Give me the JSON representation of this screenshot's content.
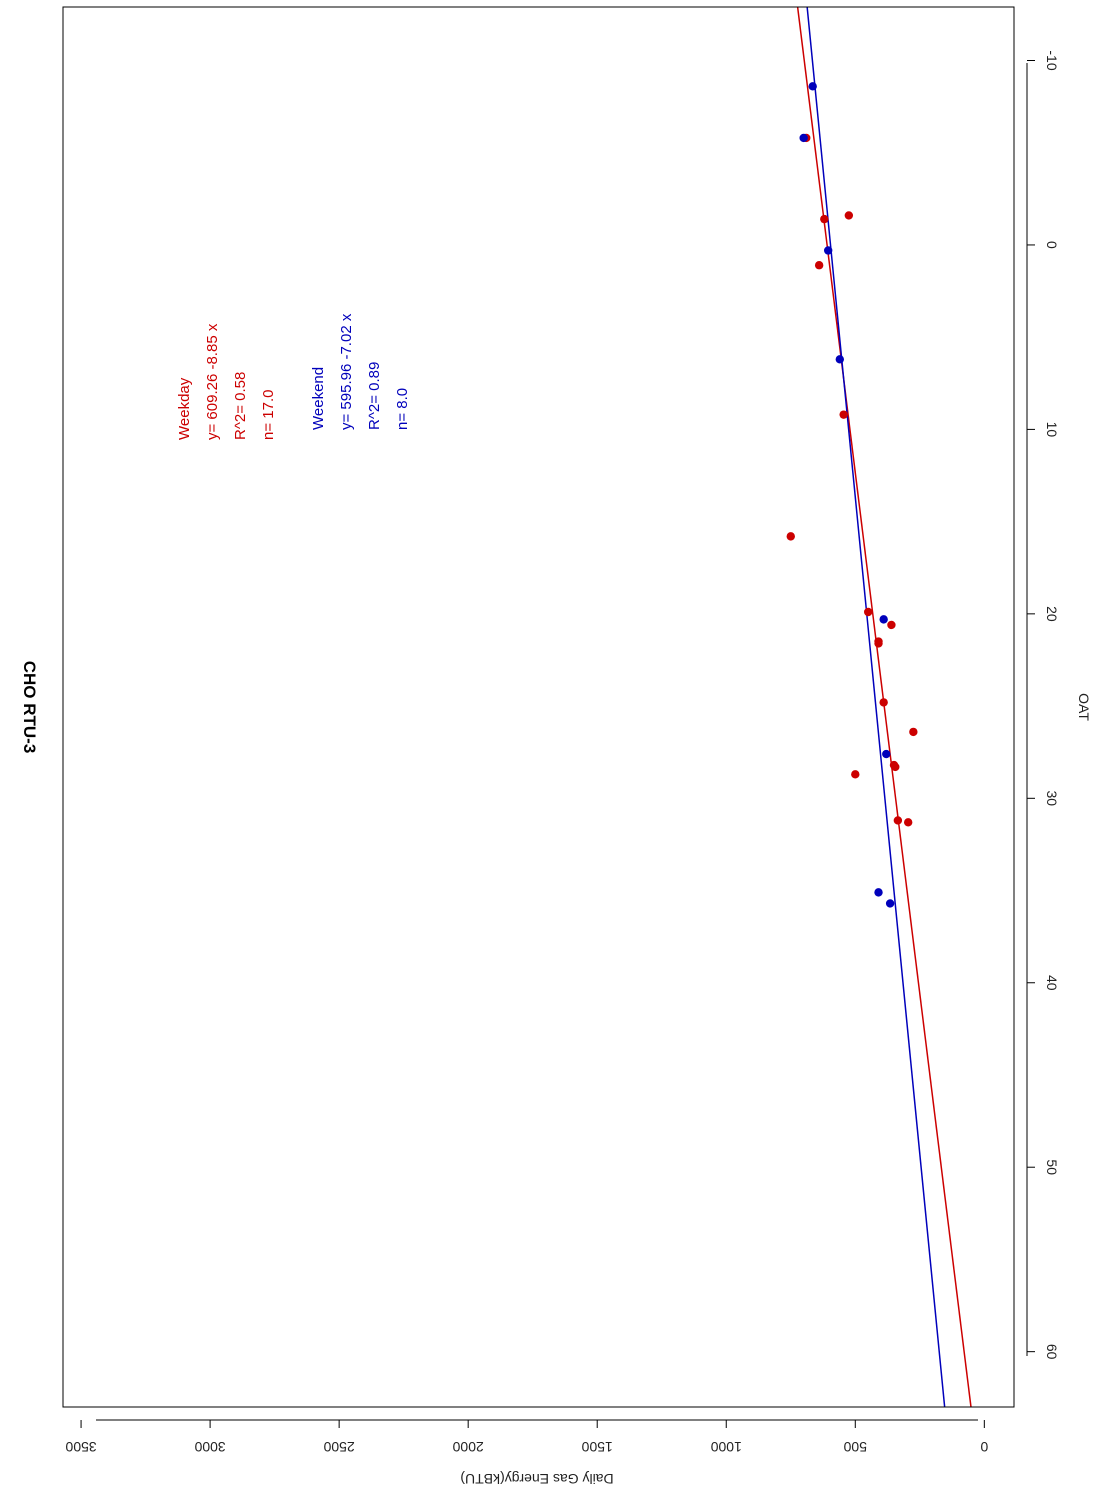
{
  "chart_data": {
    "type": "scatter",
    "title": "CHO RTU-3",
    "xlabel": "OAT",
    "ylabel": "Daily Gas Energy(kBTU)",
    "xlim": [
      -12.9,
      63
    ],
    "ylim": [
      -115,
      3570
    ],
    "x_ticks": [
      -10,
      0,
      10,
      20,
      30,
      40,
      50,
      60
    ],
    "y_ticks": [
      0,
      500,
      1000,
      1500,
      2000,
      2500,
      3000,
      3500
    ],
    "orientation": "rotated 90° clockwise",
    "grid": false,
    "series": [
      {
        "name": "Weekday",
        "color": "#cc0000",
        "points": [
          {
            "x": -5.8,
            "y": 690
          },
          {
            "x": -1.4,
            "y": 620
          },
          {
            "x": -1.6,
            "y": 525
          },
          {
            "x": 1.1,
            "y": 640
          },
          {
            "x": 9.2,
            "y": 545
          },
          {
            "x": 15.8,
            "y": 750
          },
          {
            "x": 19.9,
            "y": 450
          },
          {
            "x": 20.6,
            "y": 360
          },
          {
            "x": 21.5,
            "y": 410
          },
          {
            "x": 21.6,
            "y": 410
          },
          {
            "x": 24.8,
            "y": 390
          },
          {
            "x": 26.4,
            "y": 275
          },
          {
            "x": 28.2,
            "y": 350
          },
          {
            "x": 28.3,
            "y": 345
          },
          {
            "x": 28.7,
            "y": 500
          },
          {
            "x": 31.2,
            "y": 335
          },
          {
            "x": 31.3,
            "y": 295
          }
        ],
        "fit": {
          "intercept": 609.26,
          "slope": -8.85
        }
      },
      {
        "name": "Weekend",
        "color": "#0000bb",
        "points": [
          {
            "x": -8.6,
            "y": 665
          },
          {
            "x": -5.8,
            "y": 700
          },
          {
            "x": 0.3,
            "y": 605
          },
          {
            "x": 6.2,
            "y": 560
          },
          {
            "x": 20.3,
            "y": 390
          },
          {
            "x": 27.6,
            "y": 380
          },
          {
            "x": 35.1,
            "y": 410
          },
          {
            "x": 35.7,
            "y": 365
          }
        ],
        "fit": {
          "intercept": 595.96,
          "slope": -7.02
        }
      }
    ],
    "annotations": {
      "weekday": [
        "Weekday",
        "y= 609.26 -8.85 x",
        "R^2= 0.58",
        "n= 17.0"
      ],
      "weekend": [
        "Weekend",
        "y= 595.96 -7.02 x",
        "R^2= 0.89",
        "n= 8.0"
      ]
    }
  }
}
